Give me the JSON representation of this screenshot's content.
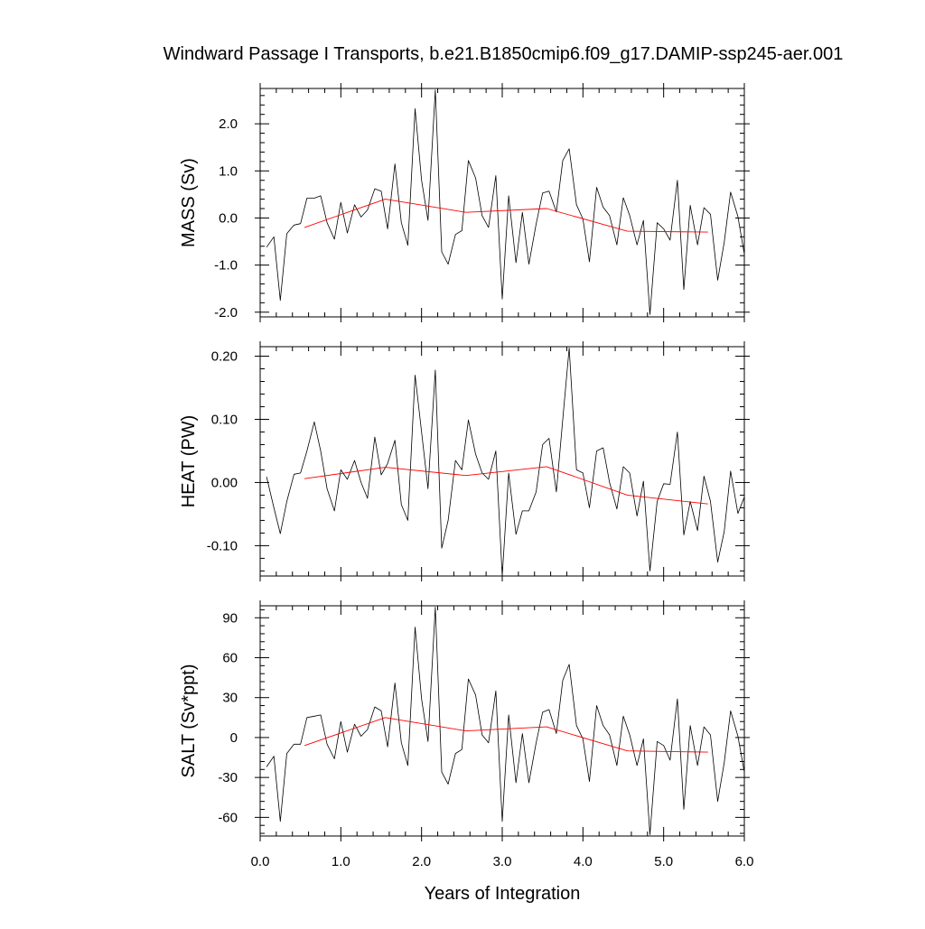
{
  "title": "Windward Passage I Transports, b.e21.B1850cmip6.f09_g17.DAMIP-ssp245-aer.001",
  "xlabel": "Years of Integration",
  "x_ticks": [
    "0.0",
    "1.0",
    "2.0",
    "3.0",
    "4.0",
    "5.0",
    "6.0"
  ],
  "colors": {
    "raw": "#000000",
    "smoothed": "#ff0000",
    "axis": "#000000"
  },
  "chart_data": [
    {
      "type": "line",
      "ylabel": "MASS (Sv)",
      "xlim": [
        0,
        6
      ],
      "ylim": [
        -2.1,
        2.75
      ],
      "yticks": [
        -2.0,
        -1.0,
        0.0,
        1.0,
        2.0
      ],
      "ytick_labels": [
        "-2.0",
        "-1.0",
        "0.0",
        "1.0",
        "2.0"
      ],
      "series": [
        {
          "x": [
            0.08,
            0.17,
            0.25,
            0.33,
            0.42,
            0.5,
            0.58,
            0.67,
            0.75,
            0.83,
            0.92,
            1.0,
            1.08,
            1.17,
            1.25,
            1.33,
            1.42,
            1.5,
            1.58,
            1.67,
            1.75,
            1.83,
            1.92,
            2.0,
            2.08,
            2.17,
            2.25,
            2.33,
            2.42,
            2.5,
            2.58,
            2.67,
            2.75,
            2.83,
            2.92,
            3.0,
            3.08,
            3.17,
            3.25,
            3.33,
            3.42,
            3.5,
            3.58,
            3.67,
            3.75,
            3.83,
            3.92,
            4.0,
            4.08,
            4.17,
            4.25,
            4.33,
            4.42,
            4.5,
            4.58,
            4.67,
            4.75,
            4.83,
            4.92,
            5.0,
            5.08,
            5.17,
            5.25,
            5.33,
            5.42,
            5.5,
            5.58,
            5.67,
            5.75,
            5.83,
            5.92,
            6.0
          ],
          "y": [
            -0.62,
            -0.4,
            -1.75,
            -0.33,
            -0.15,
            -0.12,
            0.42,
            0.42,
            0.47,
            -0.1,
            -0.45,
            0.33,
            -0.32,
            0.28,
            0.02,
            0.17,
            0.62,
            0.57,
            -0.23,
            1.15,
            -0.1,
            -0.58,
            2.32,
            0.8,
            -0.05,
            2.72,
            -0.72,
            -0.98,
            -0.35,
            -0.27,
            1.22,
            0.85,
            0.05,
            -0.2,
            0.9,
            -1.72,
            0.47,
            -0.95,
            0.12,
            -0.98,
            -0.13,
            0.53,
            0.57,
            0.13,
            1.22,
            1.47,
            0.28,
            -0.02,
            -0.93,
            0.65,
            0.23,
            0.05,
            -0.57,
            0.43,
            0.05,
            -0.57,
            -0.05,
            -2.05,
            -0.1,
            -0.23,
            -0.47,
            0.8,
            -1.52,
            0.27,
            -0.57,
            0.22,
            0.08,
            -1.32,
            -0.52,
            0.55,
            0.03,
            -0.77
          ]
        },
        {
          "name": "smoothed",
          "x": [
            0.55,
            1.55,
            2.55,
            3.55,
            4.55,
            5.55
          ],
          "y": [
            -0.2,
            0.4,
            0.12,
            0.2,
            -0.28,
            -0.3
          ]
        }
      ]
    },
    {
      "type": "line",
      "ylabel": "HEAT (PW)",
      "xlim": [
        0,
        6
      ],
      "ylim": [
        -0.148,
        0.215
      ],
      "yticks": [
        -0.1,
        0.0,
        0.1,
        0.2
      ],
      "ytick_labels": [
        "-0.10",
        "0.00",
        "0.10",
        "0.20"
      ],
      "series": [
        {
          "x": [
            0.08,
            0.17,
            0.25,
            0.33,
            0.42,
            0.5,
            0.58,
            0.67,
            0.75,
            0.83,
            0.92,
            1.0,
            1.08,
            1.17,
            1.25,
            1.33,
            1.42,
            1.5,
            1.58,
            1.67,
            1.75,
            1.83,
            1.92,
            2.0,
            2.08,
            2.17,
            2.25,
            2.33,
            2.42,
            2.5,
            2.58,
            2.67,
            2.75,
            2.83,
            2.92,
            3.0,
            3.08,
            3.17,
            3.25,
            3.33,
            3.42,
            3.5,
            3.58,
            3.67,
            3.75,
            3.83,
            3.92,
            4.0,
            4.08,
            4.17,
            4.25,
            4.33,
            4.42,
            4.5,
            4.58,
            4.67,
            4.75,
            4.83,
            4.92,
            5.0,
            5.08,
            5.17,
            5.25,
            5.33,
            5.42,
            5.5,
            5.58,
            5.67,
            5.75,
            5.83,
            5.92,
            6.0
          ],
          "y": [
            0.009,
            -0.04,
            -0.081,
            -0.03,
            0.013,
            0.015,
            0.05,
            0.096,
            0.05,
            -0.01,
            -0.045,
            0.02,
            0.005,
            0.035,
            0.0,
            -0.025,
            0.072,
            0.012,
            0.03,
            0.067,
            -0.035,
            -0.06,
            0.17,
            0.08,
            -0.01,
            0.178,
            -0.104,
            -0.06,
            0.035,
            0.02,
            0.099,
            0.045,
            0.015,
            0.005,
            0.05,
            -0.148,
            0.015,
            -0.082,
            -0.045,
            -0.045,
            -0.015,
            0.06,
            0.07,
            -0.015,
            0.1,
            0.213,
            0.02,
            0.015,
            -0.04,
            0.05,
            0.055,
            0.0,
            -0.042,
            0.025,
            0.015,
            -0.053,
            0.002,
            -0.14,
            -0.03,
            -0.002,
            -0.003,
            0.08,
            -0.083,
            -0.03,
            -0.076,
            0.01,
            -0.03,
            -0.126,
            -0.078,
            0.018,
            -0.049,
            -0.023
          ]
        },
        {
          "name": "smoothed",
          "x": [
            0.55,
            1.55,
            2.55,
            3.55,
            4.55,
            5.55
          ],
          "y": [
            0.006,
            0.024,
            0.011,
            0.025,
            -0.02,
            -0.034
          ]
        }
      ]
    },
    {
      "type": "line",
      "ylabel": "SALT (Sv*ppt)",
      "xlim": [
        0,
        6
      ],
      "ylim": [
        -74,
        99
      ],
      "yticks": [
        -60,
        -30,
        0,
        30,
        60,
        90
      ],
      "ytick_labels": [
        "-60",
        "-30",
        "0",
        "30",
        "60",
        "90"
      ],
      "series": [
        {
          "x": [
            0.08,
            0.17,
            0.25,
            0.33,
            0.42,
            0.5,
            0.58,
            0.67,
            0.75,
            0.83,
            0.92,
            1.0,
            1.08,
            1.17,
            1.25,
            1.33,
            1.42,
            1.5,
            1.58,
            1.67,
            1.75,
            1.83,
            1.92,
            2.0,
            2.08,
            2.17,
            2.25,
            2.33,
            2.42,
            2.5,
            2.58,
            2.67,
            2.75,
            2.83,
            2.92,
            3.0,
            3.08,
            3.17,
            3.25,
            3.33,
            3.42,
            3.5,
            3.58,
            3.67,
            3.75,
            3.83,
            3.92,
            4.0,
            4.08,
            4.17,
            4.25,
            4.33,
            4.42,
            4.5,
            4.58,
            4.67,
            4.75,
            4.83,
            4.92,
            5.0,
            5.08,
            5.17,
            5.25,
            5.33,
            5.42,
            5.5,
            5.58,
            5.67,
            5.75,
            5.83,
            5.92,
            6.0
          ],
          "y": [
            -22,
            -14,
            -63,
            -12,
            -5,
            -5,
            15,
            16,
            17,
            -5,
            -16,
            12,
            -11,
            10,
            1,
            6,
            23,
            20,
            -7,
            41,
            -4,
            -21,
            83,
            29,
            -3,
            98,
            -26,
            -35,
            -12,
            -9,
            44,
            32,
            2,
            -4,
            35,
            -63,
            17,
            -34,
            3,
            -34,
            -4,
            19,
            21,
            3,
            43,
            55,
            9,
            -1,
            -33,
            24,
            9,
            2,
            -21,
            16,
            2,
            -21,
            -1,
            -73,
            -3,
            -6,
            -17,
            29,
            -54,
            9,
            -21,
            8,
            2,
            -48,
            -19,
            20,
            1,
            -26
          ]
        },
        {
          "name": "smoothed",
          "x": [
            0.55,
            1.55,
            2.55,
            3.55,
            4.55,
            5.55
          ],
          "y": [
            -6,
            15,
            5,
            8,
            -10,
            -11
          ]
        }
      ]
    }
  ]
}
